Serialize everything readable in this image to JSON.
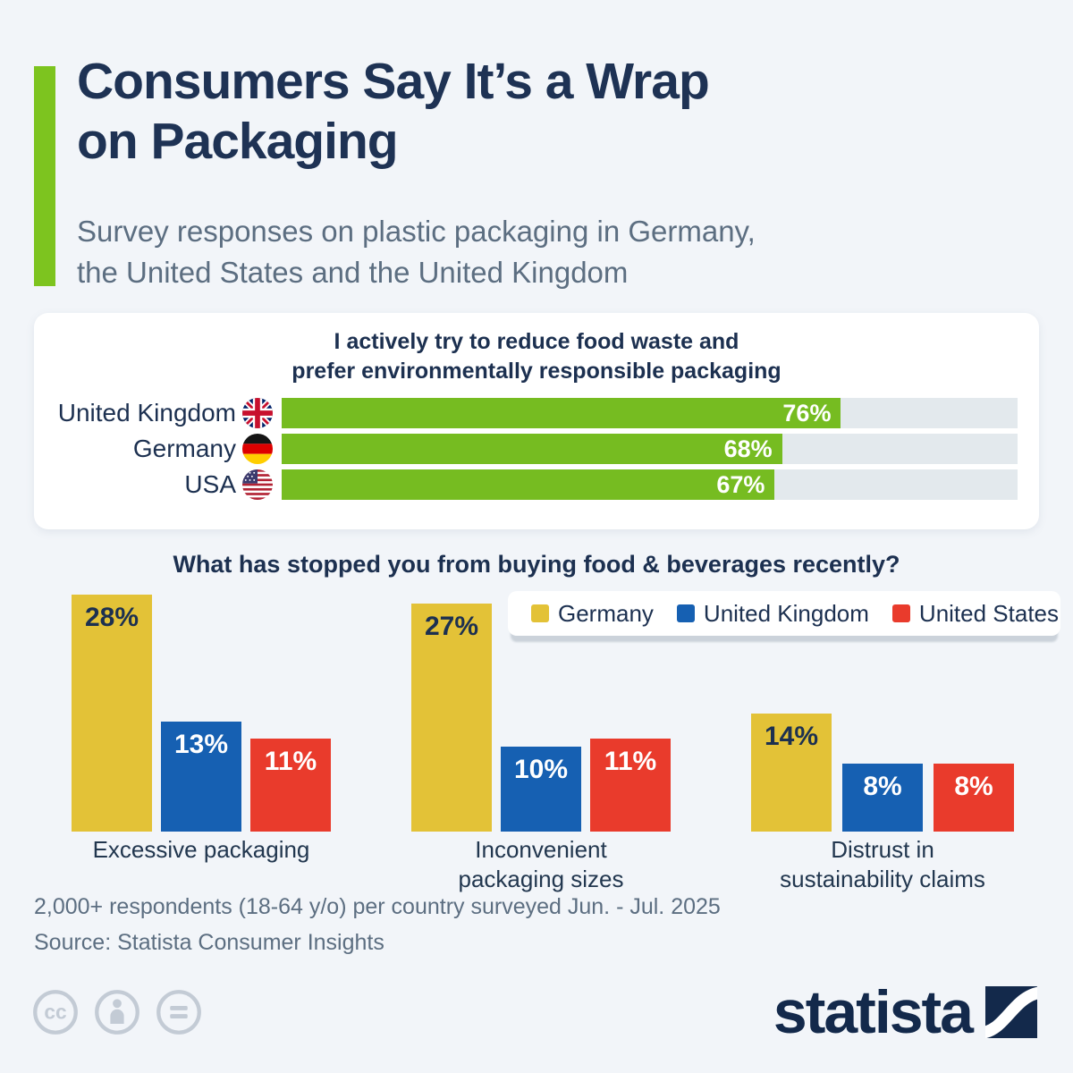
{
  "page": {
    "title_line1": "Consumers Say It’s a Wrap",
    "title_line2": "on Packaging",
    "subtitle_line1": "Survey responses on plastic packaging in Germany,",
    "subtitle_line2": "the United States and the United Kingdom",
    "footnote": "2,000+ respondents (18-64 y/o) per country surveyed Jun. - Jul. 2025",
    "source": "Source: Statista Consumer Insights",
    "brand": "statista"
  },
  "card": {
    "title_line1": "I actively try to reduce food waste and",
    "title_line2": "prefer environmentally responsible packaging"
  },
  "section": {
    "title": "What has stopped you from buying food & beverages recently?"
  },
  "colors": {
    "accent_green": "#7DC41F",
    "bar_green": "#76BC21",
    "bar_track_gray": "#E3E9ED",
    "germany_yellow": "#E3C237",
    "uk_blue": "#1660B2",
    "us_red": "#E93B2C",
    "navy_text": "#1C3050",
    "muted_text": "#5C6E81"
  },
  "icons": {
    "cc": "cc",
    "uk_flag": "uk-flag",
    "germany_flag": "germany-flag",
    "usa_flag": "usa-flag"
  },
  "chart_data": [
    {
      "type": "bar",
      "orientation": "horizontal",
      "title": "I actively try to reduce food waste and prefer environmentally responsible packaging",
      "categories": [
        "United Kingdom",
        "Germany",
        "USA"
      ],
      "values": [
        76,
        68,
        67
      ],
      "unit": "%",
      "xlim": [
        0,
        100
      ],
      "bar_color": "#76BC21",
      "grid": false,
      "value_labels_inside_bars": true
    },
    {
      "type": "bar",
      "orientation": "vertical",
      "title": "What has stopped you from buying food & beverages recently?",
      "categories": [
        "Excessive packaging",
        "Inconvenient packaging sizes",
        "Distrust in sustainability claims"
      ],
      "series": [
        {
          "name": "Germany",
          "color": "#E3C237",
          "values": [
            28,
            27,
            14
          ]
        },
        {
          "name": "United Kingdom",
          "color": "#1660B2",
          "values": [
            13,
            10,
            8
          ]
        },
        {
          "name": "United States",
          "color": "#E93B2C",
          "values": [
            11,
            11,
            8
          ]
        }
      ],
      "unit": "%",
      "ylim": [
        0,
        30
      ],
      "grid": false,
      "legend_position": "top-right",
      "value_labels_inside_bars": true
    }
  ]
}
